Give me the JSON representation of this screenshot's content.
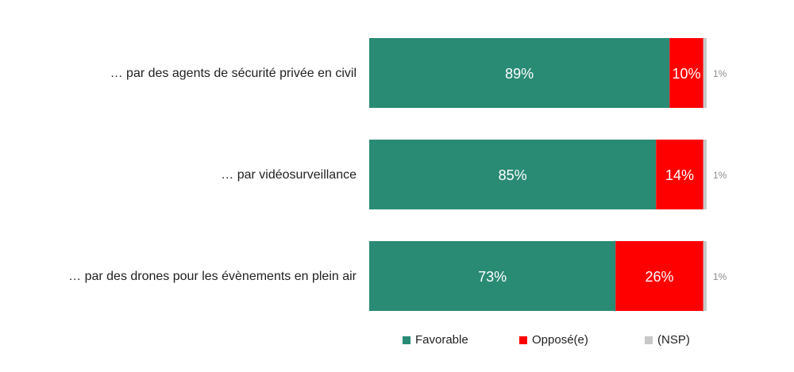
{
  "chart_data": {
    "type": "bar",
    "orientation": "horizontal",
    "stacked": true,
    "categories": [
      "… par des agents de sécurité privée en civil",
      "… par vidéosurveillance",
      "… par des drones pour les évènements en plein air"
    ],
    "series": [
      {
        "name": "Favorable",
        "color": "#2a8b74",
        "values": [
          89,
          85,
          73
        ],
        "labels": [
          "89%",
          "85%",
          "73%"
        ]
      },
      {
        "name": "Opposé(e)",
        "color": "#ff0000",
        "values": [
          10,
          14,
          26
        ],
        "labels": [
          "10%",
          "14%",
          "26%"
        ]
      },
      {
        "name": "(NSP)",
        "color": "#c8c8c8",
        "values": [
          1,
          1,
          1
        ],
        "labels": [
          "1%",
          "1%",
          "1%"
        ]
      }
    ],
    "title": "",
    "xlabel": "",
    "ylabel": "",
    "xlim": [
      0,
      100
    ],
    "grid": false,
    "legend_position": "bottom"
  }
}
